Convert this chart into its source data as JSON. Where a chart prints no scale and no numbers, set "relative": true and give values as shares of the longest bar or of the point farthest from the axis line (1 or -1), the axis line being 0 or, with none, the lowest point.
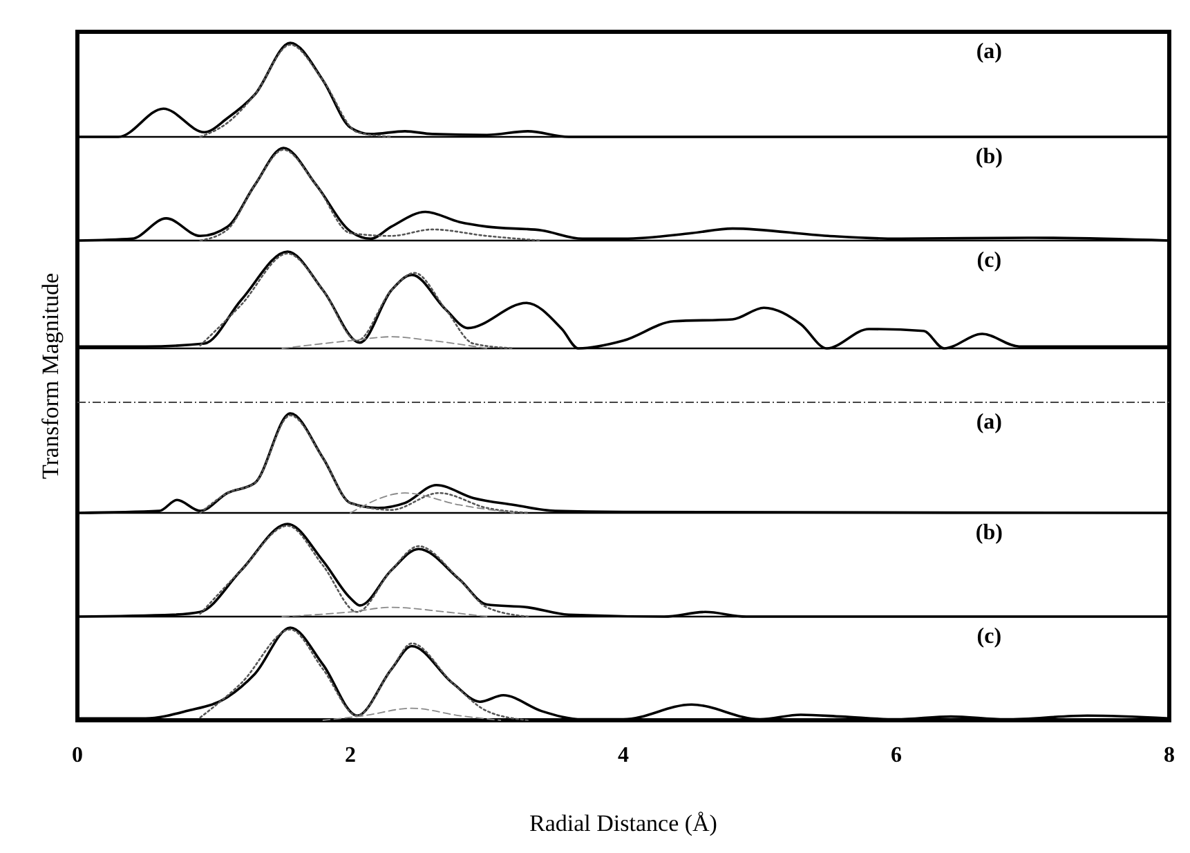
{
  "chart_data": [
    {
      "type": "line",
      "relative": true,
      "xlim": [
        0,
        8
      ],
      "tick_labels": false,
      "ylabel": "Transform Magnitude",
      "annotations": [
        "(a)"
      ],
      "series": [
        {
          "color": "#000000",
          "line_style": "solid",
          "x": [
            0,
            0.3,
            0.63,
            0.93,
            1.1,
            1.3,
            1.56,
            1.8,
            2.0,
            2.15,
            2.4,
            2.6,
            3.0,
            3.3,
            3.6,
            8
          ],
          "values": [
            0,
            0,
            0.3,
            0.05,
            0.2,
            0.45,
            1,
            0.6,
            0.1,
            0.03,
            0.06,
            0.03,
            0.02,
            0.06,
            0,
            0
          ]
        },
        {
          "color": "#555555",
          "line_style": "dotted",
          "x": [
            0.9,
            1.1,
            1.3,
            1.56,
            1.8,
            2.05,
            2.3
          ],
          "values": [
            0,
            0.15,
            0.45,
            0.98,
            0.6,
            0.05,
            0
          ]
        }
      ]
    },
    {
      "type": "line",
      "relative": true,
      "xlim": [
        0,
        8
      ],
      "tick_labels": false,
      "annotations": [
        "(b)"
      ],
      "series": [
        {
          "color": "#000000",
          "line_style": "solid",
          "x": [
            0,
            0.4,
            0.65,
            0.9,
            1.1,
            1.3,
            1.51,
            1.75,
            2.0,
            2.15,
            2.3,
            2.55,
            2.8,
            3.0,
            3.4,
            3.7,
            4.0,
            4.5,
            4.8,
            5.5,
            6,
            7,
            8
          ],
          "values": [
            0,
            0.02,
            0.24,
            0.05,
            0.15,
            0.6,
            1,
            0.6,
            0.1,
            0.02,
            0.15,
            0.31,
            0.2,
            0.15,
            0.11,
            0.02,
            0.02,
            0.08,
            0.13,
            0.05,
            0.02,
            0.03,
            0
          ]
        },
        {
          "color": "#555555",
          "line_style": "dotted",
          "x": [
            0.9,
            1.1,
            1.3,
            1.51,
            1.75,
            2.0,
            2.3,
            2.6,
            3.0,
            3.4
          ],
          "values": [
            0,
            0.12,
            0.6,
            0.98,
            0.6,
            0.08,
            0.05,
            0.12,
            0.05,
            0
          ]
        }
      ]
    },
    {
      "type": "line",
      "relative": true,
      "xlim": [
        0,
        8
      ],
      "tick_labels": false,
      "annotations": [
        "(c)"
      ],
      "series": [
        {
          "color": "#000000",
          "line_style": "solid",
          "x": [
            0,
            0.5,
            0.93,
            1.2,
            1.54,
            1.8,
            2.07,
            2.3,
            2.45,
            2.7,
            2.86,
            3.29,
            3.55,
            3.67,
            4.0,
            4.37,
            4.8,
            5.03,
            5.3,
            5.49,
            5.8,
            6.2,
            6.35,
            6.63,
            6.9,
            8
          ],
          "values": [
            0.02,
            0.02,
            0.05,
            0.5,
            1,
            0.6,
            0.06,
            0.6,
            0.76,
            0.4,
            0.21,
            0.47,
            0.2,
            0,
            0.08,
            0.28,
            0.3,
            0.42,
            0.25,
            0,
            0.2,
            0.18,
            0,
            0.15,
            0.02,
            0.02
          ]
        },
        {
          "color": "#555555",
          "line_style": "dotted",
          "x": [
            0.9,
            1.2,
            1.54,
            1.8,
            2.05,
            2.3,
            2.47,
            2.7,
            2.9,
            3.2
          ],
          "values": [
            0.03,
            0.45,
            0.98,
            0.6,
            0.08,
            0.6,
            0.78,
            0.4,
            0.05,
            0
          ]
        },
        {
          "color": "#888888",
          "line_style": "dashed",
          "x": [
            1.5,
            2.0,
            2.3,
            2.6,
            3.0
          ],
          "values": [
            0,
            0.08,
            0.12,
            0.08,
            0
          ]
        }
      ]
    },
    {
      "type": "line",
      "relative": true,
      "xlim": [
        0,
        8
      ],
      "tick_labels": false,
      "annotations": [
        "(a)"
      ],
      "series": [
        {
          "color": "#000000",
          "line_style": "solid",
          "x": [
            0,
            0.6,
            0.73,
            0.9,
            1.1,
            1.3,
            1.56,
            1.8,
            2.0,
            2.2,
            2.4,
            2.63,
            2.9,
            3.2,
            3.5,
            4.0,
            8
          ],
          "values": [
            0,
            0.02,
            0.13,
            0.02,
            0.2,
            0.3,
            1,
            0.55,
            0.1,
            0.05,
            0.1,
            0.28,
            0.15,
            0.08,
            0.02,
            0.01,
            0
          ]
        },
        {
          "color": "#555555",
          "line_style": "dotted",
          "x": [
            0.9,
            1.1,
            1.3,
            1.56,
            1.8,
            2.0,
            2.3,
            2.65,
            3.0,
            3.3
          ],
          "values": [
            0,
            0.2,
            0.3,
            0.98,
            0.55,
            0.1,
            0.03,
            0.2,
            0.05,
            0
          ]
        },
        {
          "color": "#888888",
          "line_style": "dashed",
          "x": [
            2.0,
            2.4,
            2.8,
            3.2
          ],
          "values": [
            0,
            0.2,
            0.08,
            0
          ]
        }
      ]
    },
    {
      "type": "line",
      "relative": true,
      "xlim": [
        0,
        8
      ],
      "tick_labels": false,
      "annotations": [
        "(b)"
      ],
      "series": [
        {
          "color": "#000000",
          "line_style": "solid",
          "x": [
            0,
            0.7,
            0.9,
            1.2,
            1.54,
            1.8,
            2.0,
            2.07,
            2.3,
            2.5,
            2.8,
            3.0,
            3.3,
            3.6,
            4.3,
            4.6,
            4.9,
            8
          ],
          "values": [
            0,
            0.02,
            0.05,
            0.5,
            1,
            0.6,
            0.2,
            0.12,
            0.5,
            0.73,
            0.4,
            0.13,
            0.1,
            0.02,
            0,
            0.05,
            0,
            0
          ]
        },
        {
          "color": "#555555",
          "line_style": "dotted",
          "x": [
            0.9,
            1.2,
            1.54,
            1.8,
            2.05,
            2.3,
            2.5,
            2.8,
            3.0,
            3.3
          ],
          "values": [
            0.03,
            0.5,
            0.98,
            0.55,
            0.05,
            0.5,
            0.76,
            0.4,
            0.1,
            0
          ]
        },
        {
          "color": "#888888",
          "line_style": "dashed",
          "x": [
            1.5,
            2.0,
            2.3,
            2.7,
            3.0
          ],
          "values": [
            0,
            0.05,
            0.1,
            0.05,
            0
          ]
        }
      ]
    },
    {
      "type": "line",
      "relative": true,
      "xlim": [
        0,
        8
      ],
      "xticks": [
        0,
        2,
        4,
        6,
        8
      ],
      "tick_labels": "x",
      "xlabel": "Radial Distance (Å)",
      "annotations": [
        "(c)"
      ],
      "series": [
        {
          "color": "#000000",
          "line_style": "solid",
          "x": [
            0,
            0.5,
            0.8,
            1.1,
            1.3,
            1.56,
            1.8,
            2.05,
            2.3,
            2.45,
            2.75,
            2.95,
            3.12,
            3.4,
            3.7,
            4.0,
            4.5,
            5.0,
            5.3,
            5.6,
            6.0,
            6.4,
            6.8,
            7.4,
            8
          ],
          "values": [
            0.02,
            0.02,
            0.1,
            0.25,
            0.5,
            1,
            0.6,
            0.05,
            0.55,
            0.8,
            0.4,
            0.2,
            0.27,
            0.1,
            0.01,
            0.01,
            0.17,
            0.01,
            0.06,
            0.04,
            0.01,
            0.04,
            0.01,
            0.05,
            0.02
          ]
        },
        {
          "color": "#555555",
          "line_style": "dotted",
          "x": [
            0.9,
            1.2,
            1.56,
            1.8,
            2.05,
            2.3,
            2.45,
            2.75,
            3.0,
            3.3
          ],
          "values": [
            0.03,
            0.4,
            0.98,
            0.55,
            0.05,
            0.55,
            0.83,
            0.4,
            0.1,
            0
          ]
        },
        {
          "color": "#888888",
          "line_style": "dashed",
          "x": [
            1.8,
            2.1,
            2.45,
            2.8,
            3.1
          ],
          "values": [
            0,
            0.05,
            0.13,
            0.05,
            0
          ]
        }
      ]
    }
  ]
}
